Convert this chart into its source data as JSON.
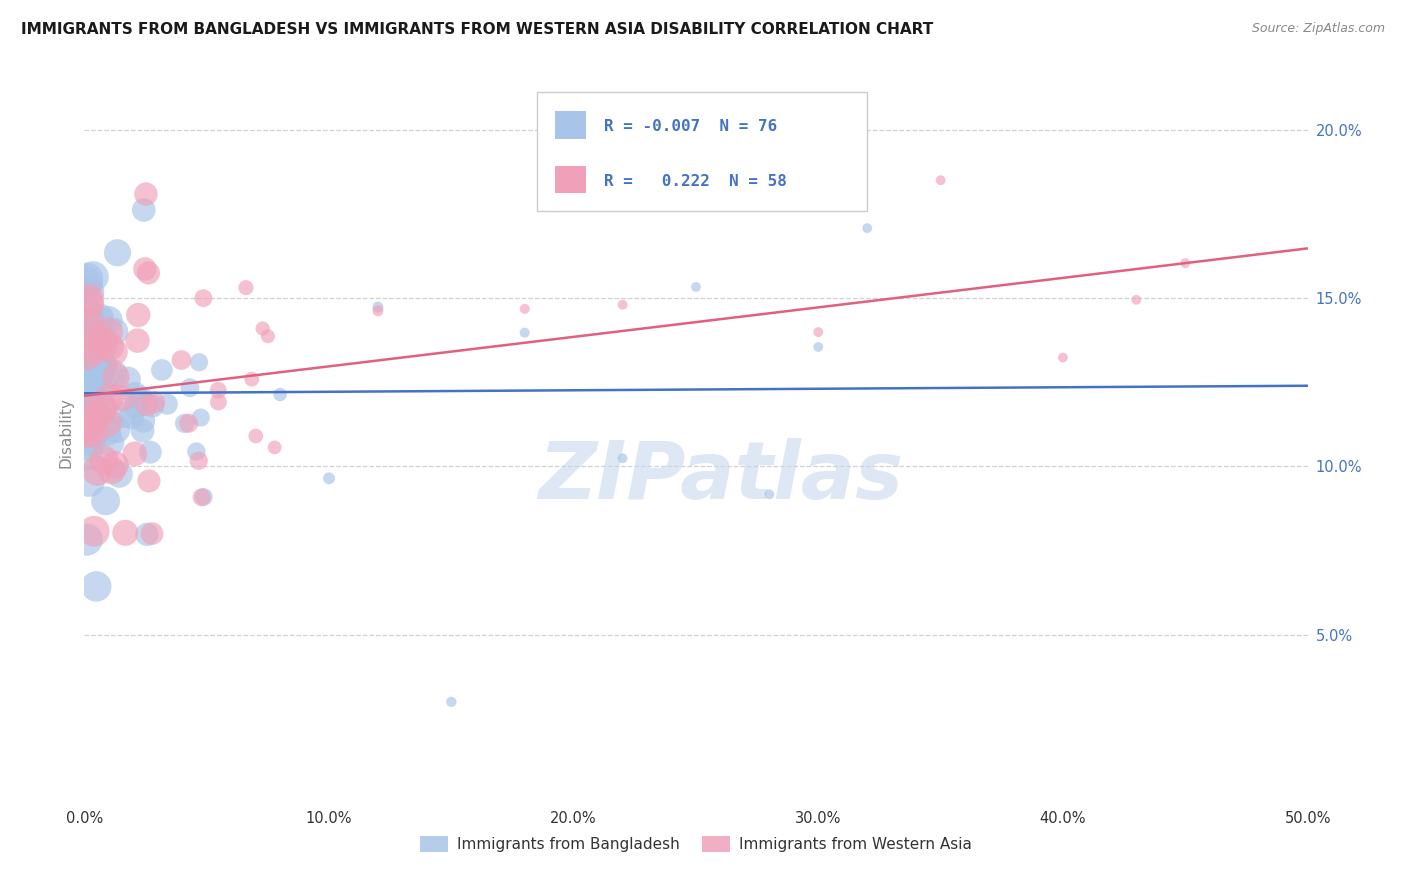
{
  "title": "IMMIGRANTS FROM BANGLADESH VS IMMIGRANTS FROM WESTERN ASIA DISABILITY CORRELATION CHART",
  "source": "Source: ZipAtlas.com",
  "ylabel": "Disability",
  "xlim": [
    0.0,
    0.5
  ],
  "ylim": [
    0.0,
    0.22
  ],
  "ytick_vals": [
    0.05,
    0.1,
    0.15,
    0.2
  ],
  "ytick_labels": [
    "5.0%",
    "10.0%",
    "15.0%",
    "20.0%"
  ],
  "xtick_vals": [
    0.0,
    0.1,
    0.2,
    0.3,
    0.4,
    0.5
  ],
  "xtick_labels": [
    "0.0%",
    "10.0%",
    "20.0%",
    "30.0%",
    "40.0%",
    "50.0%"
  ],
  "color_bangladesh": "#a8c4e8",
  "color_western_asia": "#f0a0b8",
  "color_line_bangladesh": "#4472c4",
  "color_line_western_asia": "#e06080",
  "color_tick_label": "#4472c4",
  "color_grid": "#cccccc",
  "background_color": "#ffffff",
  "watermark": "ZIPatlas",
  "watermark_color": "#c8d8ee",
  "legend_label1": "R = -0.007  N = 76",
  "legend_label2": "R =   0.222  N = 58",
  "legend_text_color": "#4472c4",
  "bottom_legend_label1": "Immigrants from Bangladesh",
  "bottom_legend_label2": "Immigrants from Western Asia",
  "r_bd": -0.007,
  "n_bd": 76,
  "r_wa": 0.222,
  "n_wa": 58,
  "seed_bd": 42,
  "seed_wa": 99
}
